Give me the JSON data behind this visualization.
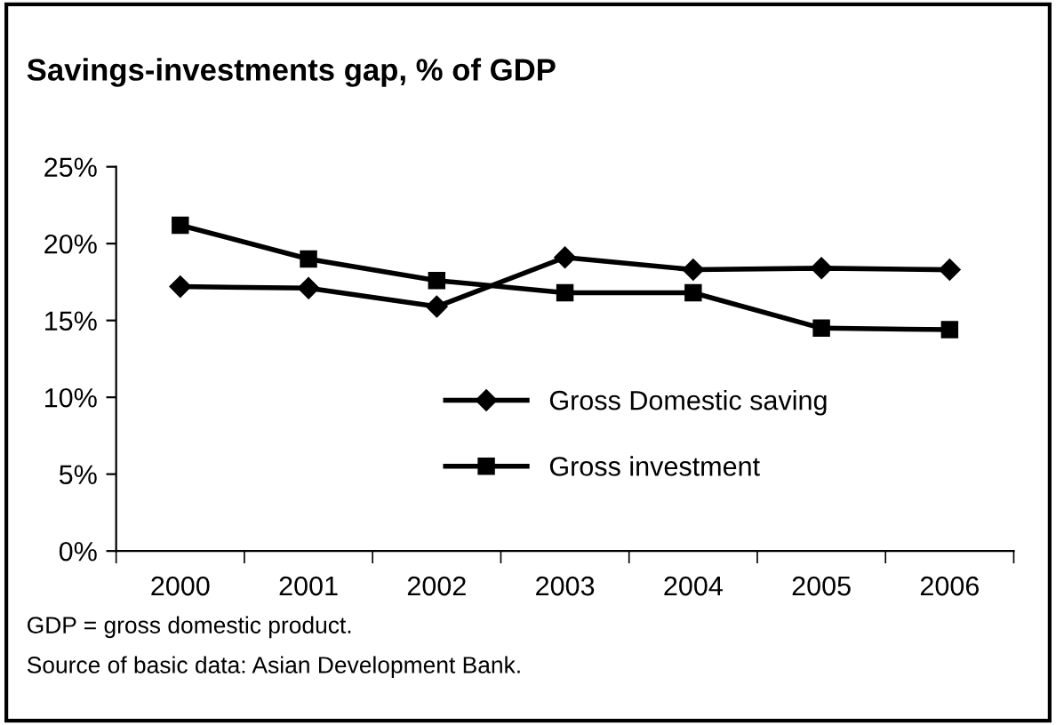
{
  "chart_data": {
    "type": "line",
    "title": "Savings-investments gap, % of GDP",
    "categories": [
      "2000",
      "2001",
      "2002",
      "2003",
      "2004",
      "2005",
      "2006"
    ],
    "series": [
      {
        "name": "Gross Domestic saving",
        "color": "#000000",
        "marker": "diamond",
        "values": [
          17.2,
          17.1,
          15.9,
          19.1,
          18.3,
          18.4,
          18.3
        ]
      },
      {
        "name": "Gross investment",
        "color": "#000000",
        "marker": "square",
        "values": [
          21.2,
          19.0,
          17.6,
          16.8,
          16.8,
          14.5,
          14.4
        ]
      }
    ],
    "ylim": [
      0,
      25
    ],
    "yticks": [
      {
        "value": 0,
        "label": "0%"
      },
      {
        "value": 5,
        "label": "5%"
      },
      {
        "value": 10,
        "label": "10%"
      },
      {
        "value": 15,
        "label": "15%"
      },
      {
        "value": 20,
        "label": "20%"
      },
      {
        "value": 25,
        "label": "25%"
      }
    ],
    "grid": false,
    "legend": "bottom",
    "line_style": "solid",
    "annotations": [
      "GDP = gross domestic product.",
      "Source of basic data: Asian Development Bank."
    ]
  }
}
